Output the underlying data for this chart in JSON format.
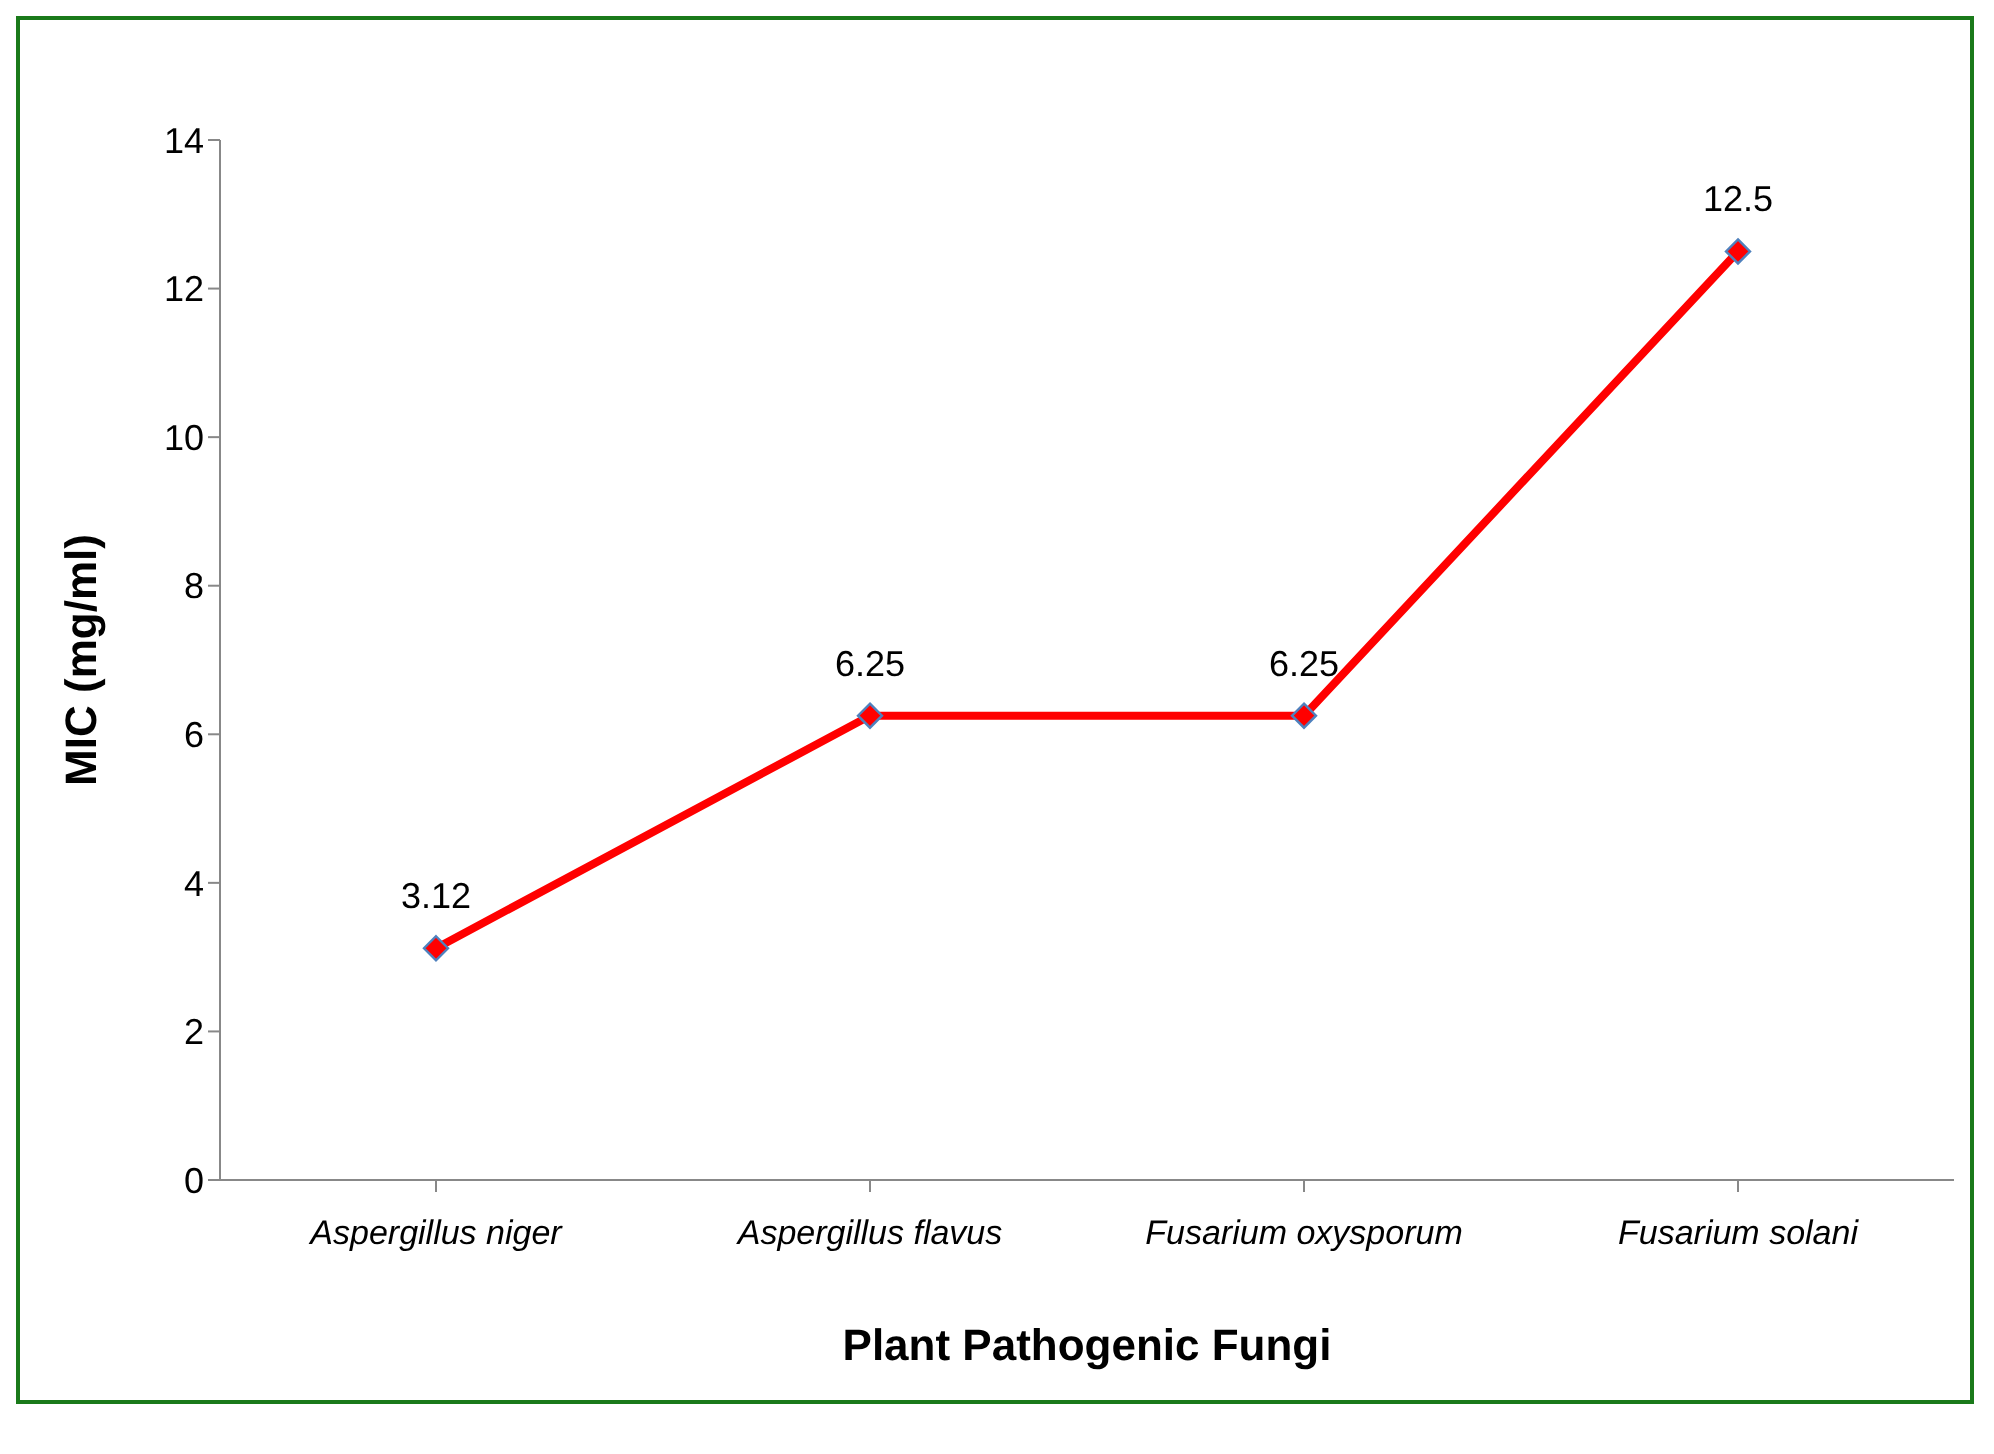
{
  "chart_data": {
    "type": "line",
    "xlabel": "Plant Pathogenic Fungi",
    "ylabel": "MIC  (mg/ml)",
    "categories": [
      "Aspergillus niger",
      "Aspergillus flavus",
      "Fusarium oxysporum",
      "Fusarium solani"
    ],
    "series": [
      {
        "color": "#ff0000",
        "values": [
          3.12,
          6.25,
          6.25,
          12.5
        ]
      }
    ],
    "ylim": [
      0,
      14
    ],
    "yticks": [
      0,
      2,
      4,
      6,
      8,
      10,
      12,
      14
    ],
    "grid": false,
    "legend": false,
    "marker": "diamond",
    "line_style": "solid",
    "data_labels": true
  }
}
